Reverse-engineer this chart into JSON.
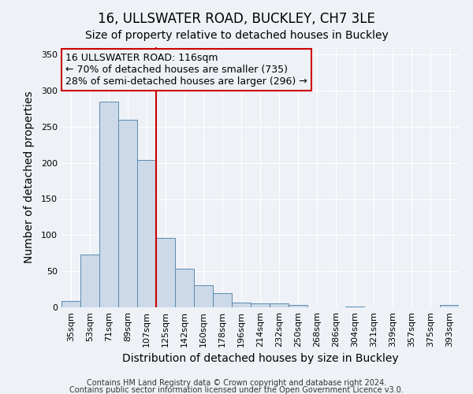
{
  "title": "16, ULLSWATER ROAD, BUCKLEY, CH7 3LE",
  "subtitle": "Size of property relative to detached houses in Buckley",
  "xlabel": "Distribution of detached houses by size in Buckley",
  "ylabel": "Number of detached properties",
  "categories": [
    "35sqm",
    "53sqm",
    "71sqm",
    "89sqm",
    "107sqm",
    "125sqm",
    "142sqm",
    "160sqm",
    "178sqm",
    "196sqm",
    "214sqm",
    "232sqm",
    "250sqm",
    "268sqm",
    "286sqm",
    "304sqm",
    "321sqm",
    "339sqm",
    "357sqm",
    "375sqm",
    "393sqm"
  ],
  "bar_heights": [
    9,
    73,
    285,
    260,
    204,
    96,
    54,
    31,
    20,
    7,
    5,
    5,
    3,
    0,
    0,
    1,
    0,
    0,
    0,
    0,
    3
  ],
  "bar_color": "#ccd9e8",
  "bar_edge_color": "#5b8ab0",
  "vline_position": 4.5,
  "vline_color": "#cc0000",
  "annotation_title": "16 ULLSWATER ROAD: 116sqm",
  "annotation_line1": "← 70% of detached houses are smaller (735)",
  "annotation_line2": "28% of semi-detached houses are larger (296) →",
  "annotation_box_color": "#cc0000",
  "ylim": [
    0,
    360
  ],
  "yticks": [
    0,
    50,
    100,
    150,
    200,
    250,
    300,
    350
  ],
  "footer1": "Contains HM Land Registry data © Crown copyright and database right 2024.",
  "footer2": "Contains public sector information licensed under the Open Government Licence v3.0.",
  "background_color": "#eef2f7",
  "grid_color": "#ffffff",
  "title_fontsize": 12,
  "subtitle_fontsize": 10,
  "axis_label_fontsize": 10,
  "tick_fontsize": 8,
  "annotation_fontsize": 9,
  "footer_fontsize": 7
}
